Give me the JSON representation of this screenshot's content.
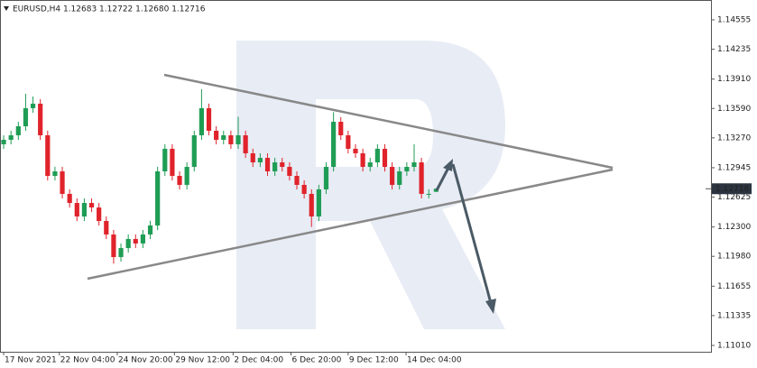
{
  "chart_data": {
    "type": "candlestick",
    "title": "EURUSD,H4  1.12683 1.12722 1.12680 1.12716",
    "open": [
      1.132,
      1.13249,
      1.13298,
      1.13396,
      1.13593,
      1.13642,
      1.13298,
      1.12856,
      1.12905,
      1.1266,
      1.12561,
      1.12414,
      1.12561,
      1.12512,
      1.12365,
      1.12218,
      1.11972,
      1.1207,
      1.12169,
      1.1212,
      1.12218,
      1.12316,
      1.12905,
      1.13151,
      1.12856,
      1.12758,
      1.12954,
      1.13298,
      1.13593,
      1.13347,
      1.13249,
      1.13298,
      1.132,
      1.13298,
      1.13102,
      1.13003,
      1.13052,
      1.12905,
      1.13003,
      1.12954,
      1.12856,
      1.12758,
      1.1266,
      1.12414,
      1.12709,
      1.12954,
      1.13445,
      1.13298,
      1.13151,
      1.13102,
      1.12954,
      1.13003,
      1.13151,
      1.12954,
      1.12758,
      1.12905,
      1.12954,
      1.13003,
      1.1266,
      1.12683
    ],
    "high": [
      1.13299,
      1.13348,
      1.13446,
      1.1375,
      1.1372,
      1.13692,
      1.13348,
      1.12955,
      1.12955,
      1.1271,
      1.12611,
      1.12611,
      1.12611,
      1.12562,
      1.12415,
      1.12268,
      1.1212,
      1.12219,
      1.12219,
      1.12268,
      1.12366,
      1.12955,
      1.13201,
      1.13201,
      1.12906,
      1.13004,
      1.13348,
      1.138,
      1.13643,
      1.13397,
      1.13348,
      1.13348,
      1.135,
      1.13348,
      1.13152,
      1.13102,
      1.13102,
      1.13053,
      1.13053,
      1.13004,
      1.12906,
      1.12808,
      1.1271,
      1.12759,
      1.13004,
      1.1355,
      1.13495,
      1.13348,
      1.13201,
      1.13152,
      1.13053,
      1.13201,
      1.13201,
      1.13004,
      1.12955,
      1.13004,
      1.132,
      1.13053,
      1.1271,
      1.12722
    ],
    "low": [
      1.1315,
      1.13199,
      1.13248,
      1.13346,
      1.13543,
      1.13248,
      1.12806,
      1.12806,
      1.1261,
      1.12511,
      1.12364,
      1.12364,
      1.12462,
      1.12315,
      1.12168,
      1.119,
      1.11922,
      1.1202,
      1.1207,
      1.1207,
      1.12168,
      1.12266,
      1.12855,
      1.12806,
      1.12708,
      1.12708,
      1.12904,
      1.13248,
      1.13297,
      1.13199,
      1.13199,
      1.1315,
      1.1315,
      1.13052,
      1.12953,
      1.12953,
      1.12855,
      1.12855,
      1.12904,
      1.12806,
      1.12708,
      1.1261,
      1.123,
      1.12364,
      1.12659,
      1.12904,
      1.13248,
      1.13101,
      1.13052,
      1.12904,
      1.12904,
      1.12953,
      1.12904,
      1.12708,
      1.12708,
      1.12855,
      1.12904,
      1.1261,
      1.1261,
      1.1268
    ],
    "close": [
      1.13249,
      1.13298,
      1.13396,
      1.13593,
      1.13642,
      1.13298,
      1.12856,
      1.12905,
      1.1266,
      1.12561,
      1.12414,
      1.12561,
      1.12512,
      1.12365,
      1.12218,
      1.11972,
      1.1207,
      1.12169,
      1.1212,
      1.12218,
      1.12316,
      1.12905,
      1.13151,
      1.12856,
      1.12758,
      1.12954,
      1.13298,
      1.13593,
      1.13347,
      1.13249,
      1.13298,
      1.132,
      1.13298,
      1.13102,
      1.13003,
      1.13052,
      1.12905,
      1.13003,
      1.12954,
      1.12856,
      1.12758,
      1.1266,
      1.12414,
      1.12709,
      1.12954,
      1.13445,
      1.13298,
      1.13151,
      1.13102,
      1.12954,
      1.13003,
      1.13151,
      1.12954,
      1.12758,
      1.12905,
      1.12954,
      1.13003,
      1.1266,
      1.1266,
      1.12716
    ],
    "up_color": "#1f9d55",
    "down_color": "#e0232b",
    "xlim": [
      -0.5,
      96.5
    ],
    "xticks": [
      {
        "value": 0,
        "label": "17 Nov 2021"
      },
      {
        "value": 7.6,
        "label": "22 Nov 04:00"
      },
      {
        "value": 15.5,
        "label": "24 Nov 20:00"
      },
      {
        "value": 23.3,
        "label": "29 Nov 12:00"
      },
      {
        "value": 31.3,
        "label": "2 Dec 04:00"
      },
      {
        "value": 39.2,
        "label": "6 Dec 20:00"
      },
      {
        "value": 47,
        "label": "9 Dec 12:00"
      },
      {
        "value": 54.9,
        "label": "14 Dec 04:00"
      }
    ],
    "ylim": [
      1.10941,
      1.14771
    ],
    "yticks": [
      1.14555,
      1.14235,
      {
        "value": 1.1391,
        "label": "1.13910"
      },
      {
        "value": 1.1359,
        "label": "1.13590"
      },
      {
        "value": 1.1327,
        "label": "1.13270"
      },
      1.12945,
      1.12625,
      {
        "value": 1.123,
        "label": "1.12300"
      },
      {
        "value": 1.1198,
        "label": "1.11980"
      },
      1.11655,
      1.11335,
      {
        "value": 1.1101,
        "label": "1.11010"
      }
    ]
  }
}
